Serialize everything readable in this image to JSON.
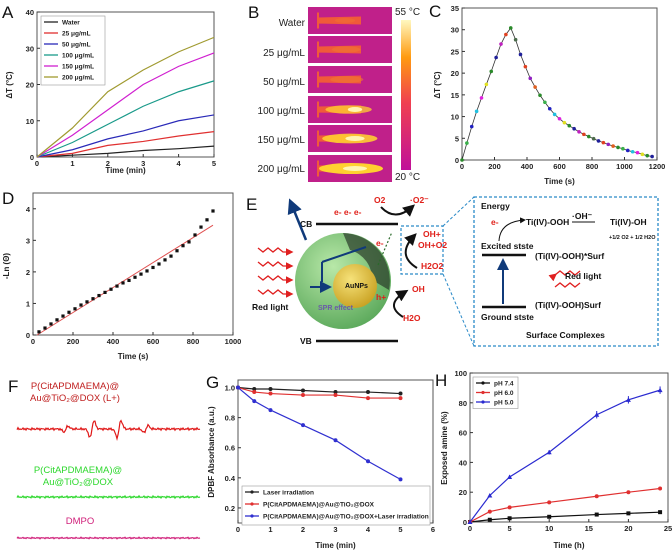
{
  "panel_labels": {
    "A": "A",
    "B": "B",
    "C": "C",
    "D": "D",
    "E": "E",
    "F": "F",
    "G": "G",
    "H": "H"
  },
  "panel_b": {
    "rows": [
      "Water",
      "25 μg/mL",
      "50 μg/mL",
      "100 μg/mL",
      "150 μg/mL",
      "200 μg/mL"
    ],
    "hotspot_intensity": [
      0,
      0.2,
      0.3,
      0.6,
      0.8,
      1.0
    ],
    "colorbar_max": "55 °C",
    "colorbar_min": "20 °C"
  },
  "panel_e": {
    "cb": "CB",
    "vb": "VB",
    "e_minus_row": "e-  e-  e-",
    "o2": "O2",
    "superoxide": "·O2⁻",
    "e_minus": "e-",
    "h_plus": "h+",
    "aunps": "AuNPs",
    "spr": "SPR effect",
    "red_light": "Red light",
    "oh_plus": "OH+",
    "oh_o2": "OH+O2",
    "h2o2": "H2O2",
    "oh": "OH",
    "h2o": "H2O",
    "energy": "Energy",
    "ti_ooh": "Ti(IV)-OOH",
    "oh_radical": "·OH⁻",
    "ti_oh": "Ti(IV)-OH",
    "byproducts": "+1/2 O2 + 1/2 H2O",
    "excited": "Excited stste",
    "ti_ooh_excited": "(Ti(IV)-OOH)*Surf",
    "red_light_2": "Red light",
    "ground": "Ground stste",
    "ti_ooh_ground": "(Ti(IV)-OOH)Surf",
    "surface_complexes": "Surface Complexes"
  },
  "panel_f": {
    "traces": [
      {
        "label_1": "P(CitAPDMAEMA)@",
        "label_2": "Au@TiO₂@DOX (L+)",
        "color": "#e01818"
      },
      {
        "label_1": "P(CitAPDMAEMA)@",
        "label_2": "Au@TiO₂@DOX",
        "color": "#2ed82e"
      },
      {
        "label_1": "DMPO",
        "label_2": "",
        "color": "#d0207a"
      }
    ]
  },
  "chart_data": [
    {
      "id": "A",
      "type": "line",
      "xlabel": "Time (min)",
      "ylabel": "ΔT (°C)",
      "xlim": [
        0,
        5
      ],
      "ylim": [
        0,
        40
      ],
      "x_ticks": [
        0,
        1,
        2,
        3,
        4,
        5
      ],
      "y_ticks": [
        0,
        10,
        20,
        30,
        40
      ],
      "legend": "top-left",
      "grid": false,
      "x": [
        0,
        1,
        2,
        3,
        4,
        5
      ],
      "series": [
        {
          "name": "Water",
          "color": "#222222",
          "values": [
            0,
            0.5,
            1,
            1.8,
            2.3,
            3
          ]
        },
        {
          "name": "25 μg/mL",
          "color": "#e03030",
          "values": [
            0,
            1,
            3.2,
            4.3,
            5.8,
            7
          ]
        },
        {
          "name": "50 μg/mL",
          "color": "#2a2ab8",
          "values": [
            0,
            2,
            5,
            7.2,
            10,
            11.6
          ]
        },
        {
          "name": "100 μg/mL",
          "color": "#1a9a8a",
          "values": [
            0,
            4,
            9,
            14,
            18,
            21
          ]
        },
        {
          "name": "150 μg/mL",
          "color": "#d020d0",
          "values": [
            0,
            6,
            13,
            20,
            25,
            28.7
          ]
        },
        {
          "name": "200 μg/mL",
          "color": "#a09a30",
          "values": [
            0,
            8,
            18,
            24,
            29,
            33
          ]
        }
      ]
    },
    {
      "id": "C",
      "type": "scatter",
      "xlabel": "Time (s)",
      "ylabel": "ΔT (°C)",
      "xlim": [
        0,
        1200
      ],
      "ylim": [
        0,
        35
      ],
      "x_ticks": [
        0,
        200,
        400,
        600,
        800,
        1000,
        1200
      ],
      "y_ticks": [
        0,
        5,
        10,
        15,
        20,
        25,
        30,
        35
      ],
      "grid": false,
      "x": [
        0,
        30,
        60,
        90,
        120,
        150,
        180,
        210,
        240,
        270,
        300,
        330,
        360,
        390,
        420,
        450,
        480,
        510,
        540,
        570,
        600,
        630,
        660,
        690,
        720,
        750,
        780,
        810,
        840,
        870,
        900,
        930,
        960,
        990,
        1020,
        1050,
        1080,
        1110,
        1140,
        1170
      ],
      "series": [
        {
          "values": [
            0,
            3.9,
            7.7,
            11.2,
            14.3,
            17.4,
            20.4,
            23.6,
            26.7,
            28.9,
            30.4,
            27.7,
            24.3,
            21.5,
            18.8,
            16.8,
            14.9,
            13.3,
            11.8,
            10.5,
            9.5,
            8.6,
            7.9,
            7.2,
            6.5,
            5.9,
            5.4,
            4.9,
            4.4,
            4.0,
            3.6,
            3.2,
            2.9,
            2.6,
            2.2,
            1.9,
            1.7,
            1.3,
            1.0,
            0.8
          ]
        }
      ],
      "marker_colors": [
        "#2a8a2a",
        "#3ab04a",
        "#2020c0",
        "#20c0e0",
        "#e020e0",
        "#e0e020",
        "#2a8a2a",
        "#20209a",
        "#c020c0",
        "#e04020",
        "#2a8a2a",
        "#4a6a4a",
        "#20209a",
        "#e04020",
        "#9020c0",
        "#e06020"
      ]
    },
    {
      "id": "D",
      "type": "scatter",
      "xlabel": "Time (s)",
      "ylabel": "-Ln (Θ)",
      "xlim": [
        0,
        1000
      ],
      "ylim": [
        0,
        4.5
      ],
      "x_ticks": [
        0,
        200,
        400,
        600,
        800,
        1000
      ],
      "y_ticks": [
        0,
        1,
        2,
        3,
        4
      ],
      "grid": false,
      "x": [
        30,
        60,
        90,
        120,
        150,
        180,
        210,
        240,
        270,
        300,
        330,
        360,
        390,
        420,
        450,
        480,
        510,
        540,
        570,
        600,
        630,
        660,
        690,
        720,
        750,
        780,
        810,
        840,
        870,
        900
      ],
      "series": [
        {
          "color": "#111111",
          "values": [
            0.1,
            0.22,
            0.35,
            0.48,
            0.6,
            0.72,
            0.83,
            0.95,
            1.05,
            1.15,
            1.25,
            1.35,
            1.45,
            1.55,
            1.65,
            1.73,
            1.83,
            1.93,
            2.03,
            2.14,
            2.25,
            2.38,
            2.5,
            2.67,
            2.83,
            2.95,
            3.17,
            3.42,
            3.65,
            3.93
          ]
        }
      ],
      "fit_line": {
        "color": "#e05050",
        "x": [
          20,
          900
        ],
        "y": [
          0,
          3.48
        ]
      }
    },
    {
      "id": "G",
      "type": "line",
      "xlabel": "Time (min)",
      "ylabel": "DPBF Absorbance (a.u.)",
      "xlim": [
        0,
        6
      ],
      "ylim": [
        0.1,
        1.05
      ],
      "x_ticks": [
        0,
        1,
        2,
        3,
        4,
        5,
        6
      ],
      "y_ticks": [
        0.2,
        0.4,
        0.6,
        0.8,
        1.0
      ],
      "legend": "bottom",
      "grid": false,
      "x": [
        0,
        0.5,
        1,
        2,
        3,
        4,
        5
      ],
      "series": [
        {
          "name": "Laser irradiation",
          "color": "#222222",
          "values": [
            1,
            0.99,
            0.99,
            0.98,
            0.97,
            0.97,
            0.96
          ]
        },
        {
          "name": "P(CitAPDMAEMA)@Au@TiO₂@DOX",
          "color": "#e03030",
          "values": [
            1,
            0.97,
            0.96,
            0.95,
            0.95,
            0.93,
            0.93
          ]
        },
        {
          "name": "P(CitAPDMAEMA)@Au@TiO₂@DOX+Laser irradiation",
          "color": "#3030d0",
          "values": [
            1,
            0.91,
            0.85,
            0.75,
            0.65,
            0.51,
            0.39
          ]
        }
      ]
    },
    {
      "id": "H",
      "type": "line",
      "xlabel": "Time (h)",
      "ylabel": "Exposed amine (%)",
      "xlim": [
        0,
        25
      ],
      "ylim": [
        0,
        100
      ],
      "x_ticks": [
        0,
        5,
        10,
        15,
        20,
        25
      ],
      "y_ticks": [
        0,
        20,
        40,
        60,
        80,
        100
      ],
      "legend": "top-left",
      "grid": false,
      "x": [
        0,
        2.5,
        5,
        10,
        16,
        20,
        24
      ],
      "series": [
        {
          "name": "pH 7.4",
          "color": "#111111",
          "marker": "square",
          "values": [
            0,
            1.5,
            2.5,
            3.5,
            5,
            5.8,
            6.6
          ]
        },
        {
          "name": "pH 6.0",
          "color": "#e03030",
          "marker": "circle",
          "values": [
            0,
            7,
            9.8,
            13.2,
            17.3,
            20,
            22.5
          ]
        },
        {
          "name": "pH 5.0",
          "color": "#2a2ad0",
          "marker": "triangle",
          "values": [
            0,
            17.8,
            30.2,
            46.8,
            72,
            82,
            88.5
          ],
          "errors": [
            0,
            1,
            1.2,
            1.5,
            2.5,
            2.5,
            2.5
          ]
        }
      ]
    }
  ]
}
